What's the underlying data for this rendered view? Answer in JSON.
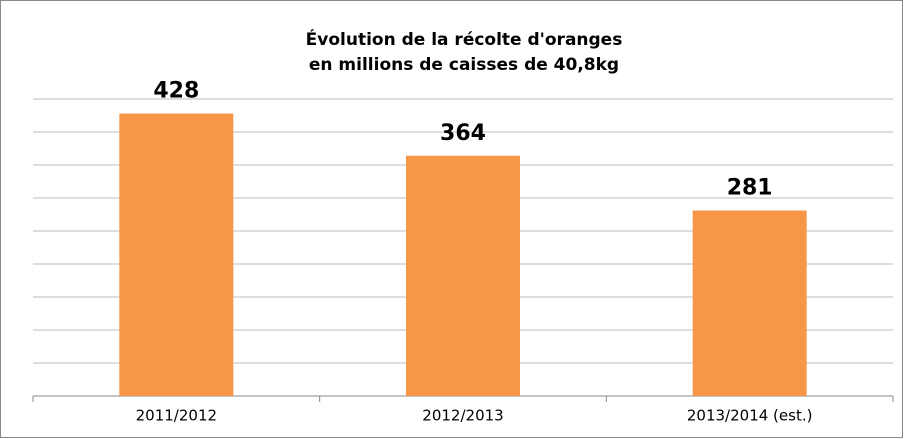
{
  "chart_data": {
    "type": "bar",
    "title": [
      "Évolution de la récolte d'oranges",
      "en millions de caisses de 40,8kg"
    ],
    "categories": [
      "2011/2012",
      "2012/2013",
      "2013/2014 (est.)"
    ],
    "values": [
      428,
      364,
      281
    ],
    "color": "#f79646",
    "ylim": [
      0,
      450
    ],
    "yticks": [
      0,
      50,
      100,
      150,
      200,
      250,
      300,
      350,
      400,
      450
    ],
    "grid": true
  }
}
